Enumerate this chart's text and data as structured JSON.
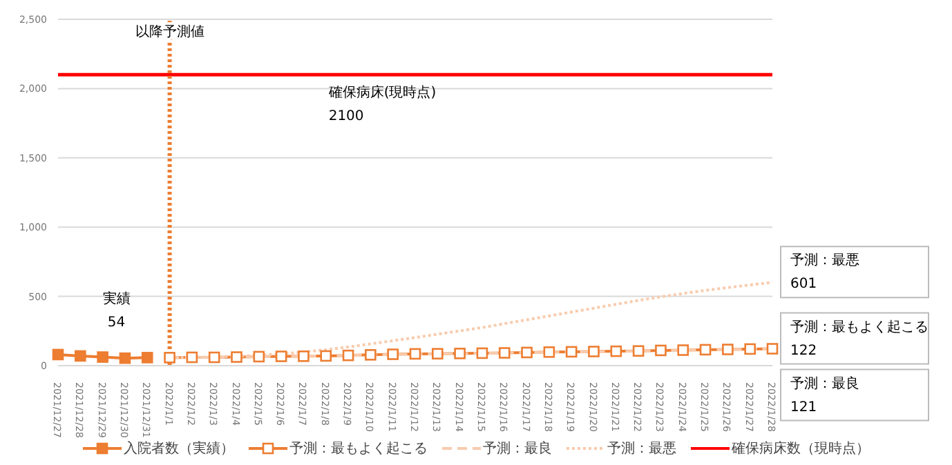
{
  "chart_data": {
    "type": "line",
    "categories": [
      "2021/12/27",
      "2021/12/28",
      "2021/12/29",
      "2021/12/30",
      "2021/12/31",
      "2022/1/1",
      "2022/1/2",
      "2022/1/3",
      "2022/1/4",
      "2022/1/5",
      "2022/1/6",
      "2022/1/7",
      "2022/1/8",
      "2022/1/9",
      "2022/1/10",
      "2022/1/11",
      "2022/1/12",
      "2022/1/13",
      "2022/1/14",
      "2022/1/15",
      "2022/1/16",
      "2022/1/17",
      "2022/1/18",
      "2022/1/19",
      "2022/1/20",
      "2022/1/21",
      "2022/1/22",
      "2022/1/23",
      "2022/1/24",
      "2022/1/25",
      "2022/1/26",
      "2022/1/27",
      "2022/1/28"
    ],
    "series": [
      {
        "name": "入院者数（実績）",
        "color": "#ed7d31",
        "marker": "square",
        "line_style": "solid",
        "values": [
          80,
          70,
          62,
          54,
          58,
          null,
          null,
          null,
          null,
          null,
          null,
          null,
          null,
          null,
          null,
          null,
          null,
          null,
          null,
          null,
          null,
          null,
          null,
          null,
          null,
          null,
          null,
          null,
          null,
          null,
          null,
          null,
          null
        ]
      },
      {
        "name": "予測：最もよく起こる",
        "color": "#ed7d31",
        "marker": "square",
        "line_style": "solid",
        "values": [
          null,
          null,
          null,
          null,
          null,
          58,
          60,
          60,
          62,
          65,
          67,
          68,
          70,
          74,
          78,
          82,
          85,
          86,
          88,
          90,
          92,
          95,
          98,
          100,
          102,
          104,
          106,
          110,
          112,
          115,
          117,
          120,
          122
        ]
      },
      {
        "name": "予測：最良",
        "color": "#f8cbad",
        "marker": "none",
        "line_style": "dashed",
        "values": [
          null,
          null,
          null,
          null,
          null,
          58,
          59,
          60,
          62,
          64,
          66,
          68,
          70,
          73,
          77,
          80,
          83,
          85,
          87,
          89,
          91,
          94,
          97,
          99,
          101,
          103,
          105,
          109,
          111,
          114,
          116,
          119,
          121
        ]
      },
      {
        "name": "予測：最悪",
        "color": "#f8cbad",
        "marker": "none",
        "line_style": "dotted",
        "values": [
          null,
          null,
          null,
          null,
          null,
          58,
          60,
          63,
          68,
          75,
          85,
          98,
          115,
          135,
          157,
          180,
          203,
          227,
          251,
          275,
          303,
          331,
          359,
          387,
          415,
          443,
          471,
          497,
          521,
          543,
          563,
          583,
          601
        ]
      },
      {
        "name": "確保病床数（現時点）",
        "color": "#ff0000",
        "marker": "none",
        "line_style": "solid",
        "values": [
          2100,
          2100,
          2100,
          2100,
          2100,
          2100,
          2100,
          2100,
          2100,
          2100,
          2100,
          2100,
          2100,
          2100,
          2100,
          2100,
          2100,
          2100,
          2100,
          2100,
          2100,
          2100,
          2100,
          2100,
          2100,
          2100,
          2100,
          2100,
          2100,
          2100,
          2100,
          2100,
          2100
        ]
      }
    ],
    "ylim": [
      0,
      2500
    ],
    "yticks": [
      0,
      {
        "value": 500,
        "label": "500"
      },
      {
        "value": 1000,
        "label": "1,000"
      },
      {
        "value": 1500,
        "label": "1,500"
      },
      {
        "value": 2000,
        "label": "2,000"
      },
      {
        "value": 2500,
        "label": "2,500"
      }
    ],
    "grid": "y",
    "legend": "bottom",
    "ref_lines": [
      {
        "axis": "x",
        "value": "2022/1/1",
        "label": "以降予測値",
        "color": "#ed7d31",
        "line_style": "dotted"
      }
    ],
    "annotations": [
      {
        "text": "確保病床(現時点)\n2100",
        "x": "2022/1/8",
        "y": 2100
      },
      {
        "text": "実績\n54",
        "x": "2021/12/30",
        "y": 54
      },
      {
        "text": "予測：最悪\n601",
        "x": "2022/1/28",
        "y": 601
      },
      {
        "text": "予測：最もよく起こる\n122",
        "x": "2022/1/28",
        "y": 122
      },
      {
        "text": "予測：最良\n121",
        "x": "2022/1/28",
        "y": 121
      }
    ]
  }
}
